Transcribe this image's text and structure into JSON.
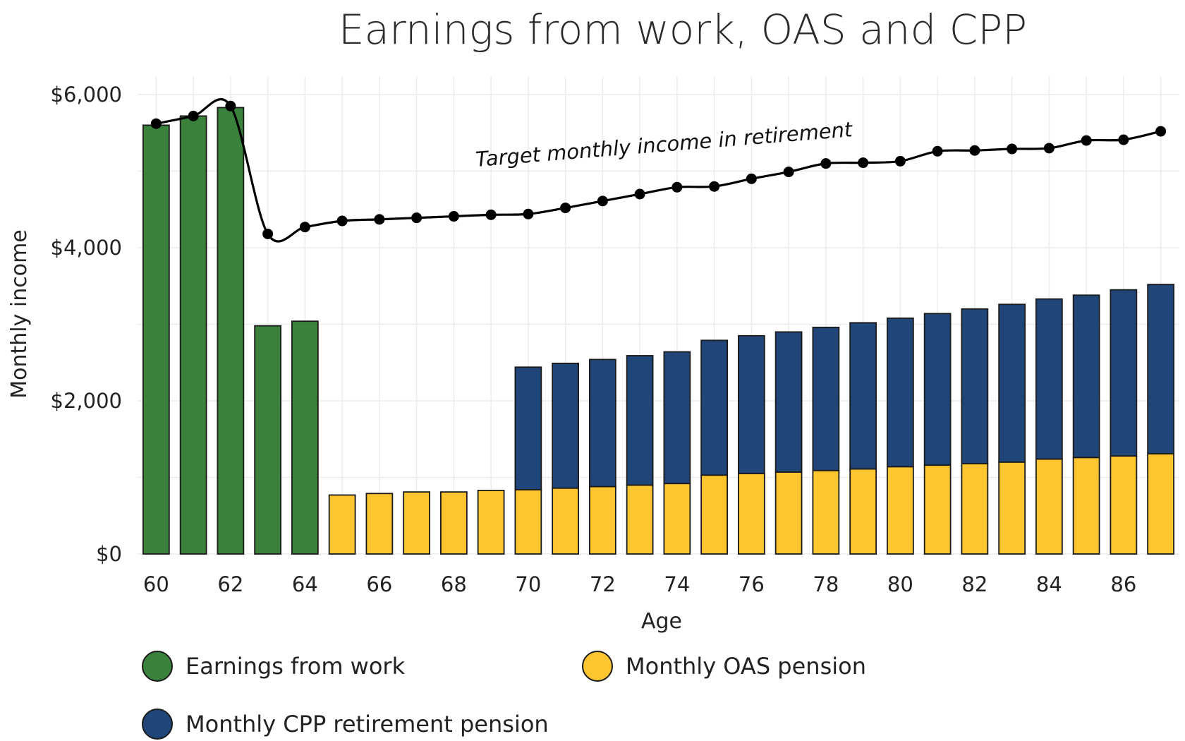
{
  "chart_data": {
    "type": "bar",
    "stacked": true,
    "title": "Earnings from work, OAS and CPP",
    "xlabel": "Age",
    "ylabel": "Monthly income",
    "x": [
      60,
      61,
      62,
      63,
      64,
      65,
      66,
      67,
      68,
      69,
      70,
      71,
      72,
      73,
      74,
      75,
      76,
      77,
      78,
      79,
      80,
      81,
      82,
      83,
      84,
      85,
      86,
      87
    ],
    "x_ticks": [
      "60",
      "62",
      "64",
      "66",
      "68",
      "70",
      "72",
      "74",
      "76",
      "78",
      "80",
      "82",
      "84",
      "86"
    ],
    "y_ticks": [
      "$0",
      "$2,000",
      "$4,000",
      "$6,000"
    ],
    "ylim": [
      0,
      6000
    ],
    "grid": true,
    "legend_position": "bottom",
    "colors": {
      "earnings": "#3a813c",
      "oas": "#fdc52f",
      "cpp": "#204579",
      "line": "#000000",
      "bar_edge": "#1a1a1a"
    },
    "series": [
      {
        "key": "earnings",
        "name": "Earnings from work",
        "values": [
          5600,
          5720,
          5830,
          2980,
          3040,
          0,
          0,
          0,
          0,
          0,
          0,
          0,
          0,
          0,
          0,
          0,
          0,
          0,
          0,
          0,
          0,
          0,
          0,
          0,
          0,
          0,
          0,
          0
        ]
      },
      {
        "key": "oas",
        "name": "Monthly OAS pension",
        "values": [
          0,
          0,
          0,
          0,
          0,
          770,
          790,
          810,
          810,
          830,
          840,
          860,
          880,
          900,
          920,
          1030,
          1050,
          1070,
          1090,
          1110,
          1140,
          1160,
          1180,
          1200,
          1240,
          1260,
          1280,
          1310
        ]
      },
      {
        "key": "cpp",
        "name": "Monthly CPP retirement pension",
        "values": [
          0,
          0,
          0,
          0,
          0,
          0,
          0,
          0,
          0,
          0,
          1600,
          1630,
          1660,
          1690,
          1720,
          1760,
          1800,
          1830,
          1870,
          1910,
          1940,
          1980,
          2020,
          2060,
          2090,
          2120,
          2170,
          2210
        ]
      }
    ],
    "line": {
      "name": "Target monthly income in retirement",
      "values": [
        5620,
        5720,
        5850,
        4180,
        4270,
        4350,
        4370,
        4390,
        4410,
        4430,
        4440,
        4520,
        4610,
        4700,
        4790,
        4800,
        4900,
        4990,
        5100,
        5110,
        5130,
        5260,
        5270,
        5290,
        5300,
        5400,
        5410,
        5520
      ]
    },
    "annotation": "Target monthly income in retirement"
  }
}
